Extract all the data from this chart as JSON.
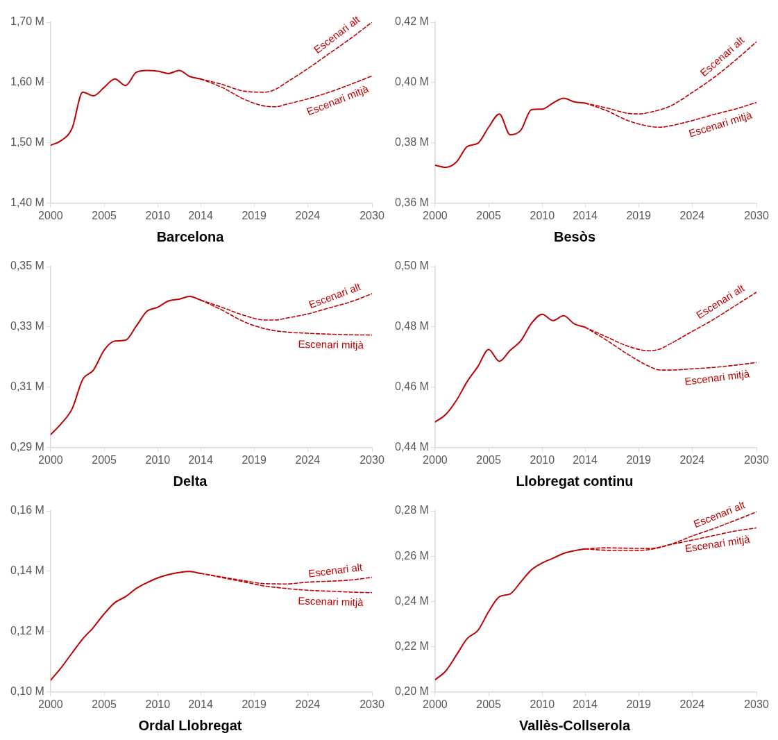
{
  "chart_data": [
    {
      "type": "line",
      "title": "Barcelona",
      "xlim": [
        2000,
        2030
      ],
      "xticks": [
        2000,
        2005,
        2010,
        2014,
        2019,
        2024,
        2030
      ],
      "ylim": [
        1.4,
        1.7
      ],
      "yticks": [
        {
          "value": 1.4,
          "label": "1,40 M"
        },
        {
          "value": 1.5,
          "label": "1,50 M"
        },
        {
          "value": 1.6,
          "label": "1,60 M"
        },
        {
          "value": 1.7,
          "label": "1,70 M"
        }
      ],
      "marker": "none",
      "series": [
        {
          "color": "#c00000",
          "line_style": "solid",
          "x": [
            2000,
            2001,
            2002,
            2003,
            2004,
            2005,
            2006,
            2007,
            2008,
            2009,
            2010,
            2011,
            2012,
            2013,
            2014
          ],
          "values": [
            1.496,
            1.504,
            1.524,
            1.584,
            1.578,
            1.592,
            1.606,
            1.595,
            1.617,
            1.62,
            1.619,
            1.615,
            1.62,
            1.61,
            1.606
          ]
        },
        {
          "name": "Escenari alt",
          "color": "#c00000",
          "line_style": "dashed",
          "x": [
            2014,
            2016,
            2018,
            2020,
            2021,
            2022,
            2024,
            2026,
            2028,
            2030
          ],
          "values": [
            1.606,
            1.597,
            1.586,
            1.584,
            1.589,
            1.6,
            1.623,
            1.648,
            1.673,
            1.7
          ]
        },
        {
          "name": "Escenari mitjà",
          "color": "#c00000",
          "line_style": "dashed",
          "x": [
            2014,
            2016,
            2018,
            2020,
            2021,
            2022,
            2024,
            2026,
            2028,
            2030
          ],
          "values": [
            1.606,
            1.592,
            1.573,
            1.561,
            1.56,
            1.564,
            1.573,
            1.584,
            1.597,
            1.611
          ]
        }
      ]
    },
    {
      "type": "line",
      "title": "Besòs",
      "xlim": [
        2000,
        2030
      ],
      "xticks": [
        2000,
        2005,
        2010,
        2014,
        2019,
        2024,
        2030
      ],
      "ylim": [
        0.36,
        0.42
      ],
      "yticks": [
        {
          "value": 0.36,
          "label": "0,36 M"
        },
        {
          "value": 0.38,
          "label": "0,38 M"
        },
        {
          "value": 0.4,
          "label": "0,40 M"
        },
        {
          "value": 0.42,
          "label": "0,42 M"
        }
      ],
      "marker": "none",
      "series": [
        {
          "color": "#c00000",
          "line_style": "solid",
          "x": [
            2000,
            2001,
            2002,
            2003,
            2004,
            2005,
            2006,
            2007,
            2008,
            2009,
            2010,
            2011,
            2012,
            2013,
            2014
          ],
          "values": [
            0.3726,
            0.3719,
            0.3737,
            0.3788,
            0.3799,
            0.3852,
            0.3896,
            0.3827,
            0.3842,
            0.391,
            0.3912,
            0.3932,
            0.3948,
            0.3936,
            0.3932
          ]
        },
        {
          "name": "Escenari alt",
          "color": "#c00000",
          "line_style": "dashed",
          "x": [
            2014,
            2016,
            2018,
            2019,
            2020,
            2022,
            2024,
            2026,
            2028,
            2030
          ],
          "values": [
            0.3932,
            0.3916,
            0.3898,
            0.3896,
            0.3901,
            0.3923,
            0.3967,
            0.4016,
            0.4073,
            0.4135
          ]
        },
        {
          "name": "Escenari mitjà",
          "color": "#c00000",
          "line_style": "dashed",
          "x": [
            2014,
            2016,
            2018,
            2020,
            2021,
            2022,
            2024,
            2026,
            2028,
            2030
          ],
          "values": [
            0.3932,
            0.3907,
            0.3874,
            0.3855,
            0.3852,
            0.3857,
            0.3874,
            0.3894,
            0.3912,
            0.3934
          ]
        }
      ]
    },
    {
      "type": "line",
      "title": "Delta",
      "xlim": [
        2000,
        2030
      ],
      "xticks": [
        2000,
        2005,
        2010,
        2014,
        2019,
        2024,
        2030
      ],
      "ylim": [
        0.29,
        0.35
      ],
      "yticks": [
        {
          "value": 0.29,
          "label": "0,29 M"
        },
        {
          "value": 0.31,
          "label": "0,31 M"
        },
        {
          "value": 0.33,
          "label": "0,33 M"
        },
        {
          "value": 0.35,
          "label": "0,35 M"
        }
      ],
      "marker": "none",
      "series": [
        {
          "color": "#c00000",
          "line_style": "solid",
          "x": [
            2000,
            2001,
            2002,
            2003,
            2004,
            2005,
            2006,
            2007,
            2008,
            2009,
            2010,
            2011,
            2012,
            2013,
            2014
          ],
          "values": [
            0.2943,
            0.298,
            0.3028,
            0.3126,
            0.3157,
            0.3223,
            0.3253,
            0.3256,
            0.3303,
            0.3352,
            0.3365,
            0.3386,
            0.3392,
            0.3401,
            0.3389
          ]
        },
        {
          "name": "Escenari alt",
          "color": "#c00000",
          "line_style": "dashed",
          "x": [
            2014,
            2016,
            2018,
            2020,
            2021,
            2022,
            2024,
            2026,
            2028,
            2030
          ],
          "values": [
            0.3389,
            0.3365,
            0.3339,
            0.3323,
            0.3323,
            0.3329,
            0.3343,
            0.3363,
            0.3383,
            0.341
          ]
        },
        {
          "name": "Escenari mitjà",
          "color": "#c00000",
          "line_style": "dashed",
          "x": [
            2014,
            2016,
            2018,
            2020,
            2022,
            2024,
            2026,
            2028,
            2030
          ],
          "values": [
            0.3389,
            0.3356,
            0.3318,
            0.3294,
            0.3283,
            0.3279,
            0.3276,
            0.3274,
            0.3273
          ]
        }
      ]
    },
    {
      "type": "line",
      "title": "Llobregat continu",
      "xlim": [
        2000,
        2030
      ],
      "xticks": [
        2000,
        2005,
        2010,
        2014,
        2019,
        2024,
        2030
      ],
      "ylim": [
        0.44,
        0.5
      ],
      "yticks": [
        {
          "value": 0.44,
          "label": "0,44 M"
        },
        {
          "value": 0.46,
          "label": "0,46 M"
        },
        {
          "value": 0.48,
          "label": "0,48 M"
        },
        {
          "value": 0.5,
          "label": "0,50 M"
        }
      ],
      "marker": "none",
      "series": [
        {
          "color": "#c00000",
          "line_style": "solid",
          "x": [
            2000,
            2001,
            2002,
            2003,
            2004,
            2005,
            2006,
            2007,
            2008,
            2009,
            2010,
            2011,
            2012,
            2013,
            2014
          ],
          "values": [
            0.4485,
            0.451,
            0.4557,
            0.4619,
            0.4669,
            0.4725,
            0.4686,
            0.4722,
            0.4754,
            0.4812,
            0.4842,
            0.4821,
            0.4837,
            0.481,
            0.4799
          ]
        },
        {
          "name": "Escenari alt",
          "color": "#c00000",
          "line_style": "dashed",
          "x": [
            2014,
            2016,
            2018,
            2020,
            2021,
            2022,
            2024,
            2026,
            2028,
            2030
          ],
          "values": [
            0.4799,
            0.4767,
            0.4736,
            0.4721,
            0.4727,
            0.4745,
            0.4785,
            0.4825,
            0.487,
            0.4915
          ]
        },
        {
          "name": "Escenari mitjà",
          "color": "#c00000",
          "line_style": "dashed",
          "x": [
            2014,
            2016,
            2018,
            2020,
            2021,
            2022,
            2024,
            2026,
            2028,
            2030
          ],
          "values": [
            0.4799,
            0.4756,
            0.4709,
            0.4669,
            0.4657,
            0.4657,
            0.4661,
            0.4666,
            0.4673,
            0.4682
          ]
        }
      ]
    },
    {
      "type": "line",
      "title": "Ordal Llobregat",
      "xlim": [
        2000,
        2030
      ],
      "xticks": [
        2000,
        2005,
        2010,
        2014,
        2019,
        2024,
        2030
      ],
      "ylim": [
        0.1,
        0.16
      ],
      "yticks": [
        {
          "value": 0.1,
          "label": "0,10 M"
        },
        {
          "value": 0.12,
          "label": "0,12 M"
        },
        {
          "value": 0.14,
          "label": "0,14 M"
        },
        {
          "value": 0.16,
          "label": "0,16 M"
        }
      ],
      "marker": "none",
      "series": [
        {
          "color": "#c00000",
          "line_style": "solid",
          "x": [
            2000,
            2001,
            2002,
            2003,
            2004,
            2005,
            2006,
            2007,
            2008,
            2009,
            2010,
            2011,
            2012,
            2013,
            2014
          ],
          "values": [
            0.1039,
            0.1081,
            0.1129,
            0.1176,
            0.1214,
            0.1259,
            0.1296,
            0.1316,
            0.1343,
            0.1362,
            0.1378,
            0.1389,
            0.1396,
            0.1399,
            0.1393
          ]
        },
        {
          "name": "Escenari alt",
          "color": "#c00000",
          "line_style": "dashed",
          "x": [
            2014,
            2016,
            2018,
            2020,
            2022,
            2024,
            2026,
            2028,
            2030
          ],
          "values": [
            0.1393,
            0.1381,
            0.1369,
            0.1359,
            0.1358,
            0.1364,
            0.1367,
            0.1371,
            0.138
          ]
        },
        {
          "name": "Escenari mitjà",
          "color": "#c00000",
          "line_style": "dashed",
          "x": [
            2014,
            2016,
            2018,
            2020,
            2022,
            2024,
            2026,
            2028,
            2030
          ],
          "values": [
            0.1393,
            0.1379,
            0.1365,
            0.1351,
            0.1343,
            0.1337,
            0.1334,
            0.1331,
            0.1329
          ]
        }
      ]
    },
    {
      "type": "line",
      "title": "Vallès-Collserola",
      "xlim": [
        2000,
        2030
      ],
      "xticks": [
        2000,
        2005,
        2010,
        2014,
        2019,
        2024,
        2030
      ],
      "ylim": [
        0.2,
        0.28
      ],
      "yticks": [
        {
          "value": 0.2,
          "label": "0,20 M"
        },
        {
          "value": 0.22,
          "label": "0,22 M"
        },
        {
          "value": 0.24,
          "label": "0,24 M"
        },
        {
          "value": 0.26,
          "label": "0,26 M"
        },
        {
          "value": 0.28,
          "label": "0,28 M"
        }
      ],
      "marker": "none",
      "series": [
        {
          "color": "#c00000",
          "line_style": "solid",
          "x": [
            2000,
            2001,
            2002,
            2003,
            2004,
            2005,
            2006,
            2007,
            2008,
            2009,
            2010,
            2011,
            2012,
            2013,
            2014
          ],
          "values": [
            0.2054,
            0.2093,
            0.2164,
            0.2236,
            0.2272,
            0.2355,
            0.2421,
            0.2433,
            0.2486,
            0.254,
            0.257,
            0.2591,
            0.2612,
            0.2624,
            0.2632
          ]
        },
        {
          "name": "Escenari alt",
          "color": "#c00000",
          "line_style": "dashed",
          "x": [
            2014,
            2016,
            2018,
            2020,
            2022,
            2024,
            2026,
            2028,
            2030
          ],
          "values": [
            0.2632,
            0.2637,
            0.2635,
            0.2634,
            0.2653,
            0.2689,
            0.2722,
            0.2758,
            0.2796
          ]
        },
        {
          "name": "Escenari mitjà",
          "color": "#c00000",
          "line_style": "dashed",
          "x": [
            2014,
            2016,
            2018,
            2020,
            2022,
            2024,
            2026,
            2028,
            2030
          ],
          "values": [
            0.2632,
            0.2626,
            0.2625,
            0.2629,
            0.2651,
            0.2671,
            0.2691,
            0.2711,
            0.2725
          ]
        }
      ]
    }
  ]
}
